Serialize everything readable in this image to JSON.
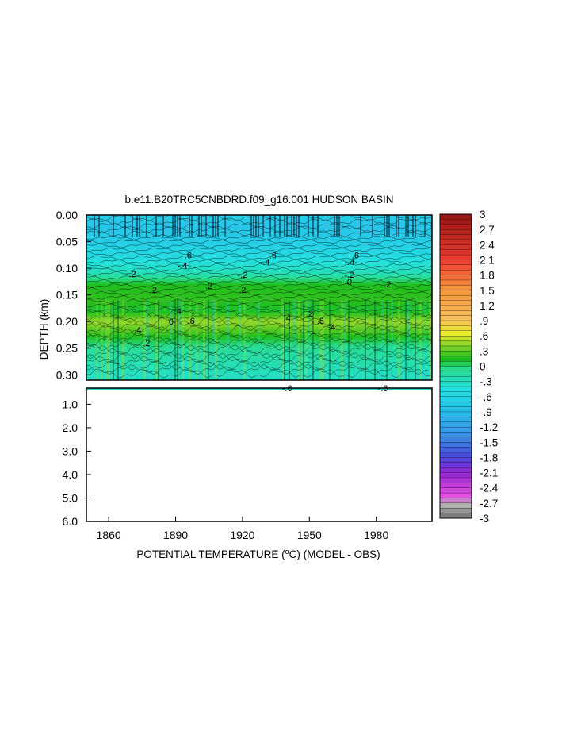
{
  "chart_data": {
    "type": "heatmap",
    "title": "b.e11.B20TRC5CNBDRD.f09_g16.001 HUDSON BASIN",
    "xlabel_parts": [
      "POTENTIAL TEMPERATURE (",
      "o",
      "C) (MODEL - OBS)"
    ],
    "ylabel": "DEPTH (km)",
    "x_range": [
      1850,
      2005
    ],
    "x_ticks": [
      1860,
      1890,
      1920,
      1950,
      1980
    ],
    "upper_panel": {
      "y_range": [
        0.0,
        0.31
      ],
      "y_ticks": [
        "0.00",
        "0.05",
        "0.10",
        "0.15",
        "0.20",
        "0.25",
        "0.30"
      ]
    },
    "lower_panel": {
      "y_range": [
        0.31,
        6.0
      ],
      "y_ticks": [
        "1.0",
        "2.0",
        "3.0",
        "4.0",
        "5.0",
        "6.0"
      ]
    },
    "colorbar": {
      "labels": [
        "3",
        "2.7",
        "2.4",
        "2.1",
        "1.8",
        "1.5",
        "1.2",
        ".9",
        ".6",
        ".3",
        "0",
        "-.3",
        "-.6",
        "-.9",
        "-1.2",
        "-1.5",
        "-1.8",
        "-2.1",
        "-2.4",
        "-2.7",
        "-3"
      ],
      "range": [
        -3,
        3
      ]
    },
    "depth_profile": [
      {
        "depth": 0.0,
        "value": -0.7
      },
      {
        "depth": 0.02,
        "value": -0.8
      },
      {
        "depth": 0.05,
        "value": -0.7
      },
      {
        "depth": 0.08,
        "value": -0.5
      },
      {
        "depth": 0.11,
        "value": -0.25
      },
      {
        "depth": 0.13,
        "value": 0.15
      },
      {
        "depth": 0.16,
        "value": 0.2
      },
      {
        "depth": 0.18,
        "value": 0.1
      },
      {
        "depth": 0.2,
        "value": 0.45
      },
      {
        "depth": 0.22,
        "value": 0.25
      },
      {
        "depth": 0.25,
        "value": -0.1
      },
      {
        "depth": 0.3,
        "value": -0.3
      }
    ],
    "contour_labels": [
      {
        "text": "-.2",
        "x": 1870,
        "depth": 0.11
      },
      {
        "text": "-.6",
        "x": 1895,
        "depth": 0.075
      },
      {
        "text": "-.4",
        "x": 1893,
        "depth": 0.095
      },
      {
        "text": "-.2",
        "x": 1920,
        "depth": 0.112
      },
      {
        "text": "-.6",
        "x": 1933,
        "depth": 0.075
      },
      {
        "text": "-.4",
        "x": 1930,
        "depth": 0.088
      },
      {
        "text": "-.2",
        "x": 1968,
        "depth": 0.112
      },
      {
        "text": "-.6",
        "x": 1970,
        "depth": 0.075
      },
      {
        "text": "-.4",
        "x": 1968,
        "depth": 0.088
      },
      {
        "text": "0",
        "x": 1968,
        "depth": 0.125
      },
      {
        "text": ".2",
        "x": 1880,
        "depth": 0.14
      },
      {
        "text": ".2",
        "x": 1905,
        "depth": 0.133
      },
      {
        "text": ".2",
        "x": 1920,
        "depth": 0.14
      },
      {
        "text": ".2",
        "x": 1985,
        "depth": 0.13
      },
      {
        "text": ".2",
        "x": 1950,
        "depth": 0.185
      },
      {
        "text": ".4",
        "x": 1891,
        "depth": 0.18
      },
      {
        "text": ".6",
        "x": 1897,
        "depth": 0.198
      },
      {
        "text": ".4",
        "x": 1940,
        "depth": 0.193
      },
      {
        "text": ".6",
        "x": 1955,
        "depth": 0.198
      },
      {
        "text": ".4",
        "x": 1960,
        "depth": 0.21
      },
      {
        "text": "0",
        "x": 1888,
        "depth": 0.2
      },
      {
        "text": ".4",
        "x": 1873,
        "depth": 0.215
      },
      {
        "text": ".2",
        "x": 1877,
        "depth": 0.24
      },
      {
        "text": "-.6",
        "x": 1940,
        "depth": 0.315
      },
      {
        "text": "-.6",
        "x": 1983,
        "depth": 0.315
      }
    ]
  }
}
